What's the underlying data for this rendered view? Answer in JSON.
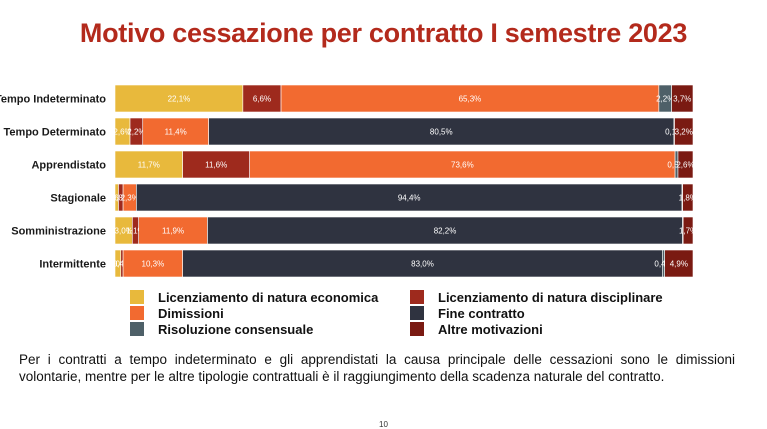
{
  "title": "Motivo cessazione per contratto I semestre 2023",
  "note": "Per i contratti a tempo indeterminato e gli apprendistati la causa principale delle cessazioni sono le dimissioni volontarie, mentre per le altre tipologie contrattuali è il raggiungimento della scadenza naturale del contratto.",
  "page_number": "10",
  "chart_data": {
    "type": "bar",
    "orientation": "horizontal",
    "stacked": true,
    "percent_stacked": true,
    "categories": [
      "Tempo Indeterminato",
      "Tempo Determinato",
      "Apprendistato",
      "Stagionale",
      "Somministrazione",
      "Intermittente"
    ],
    "series": [
      {
        "name": "Licenziamento di natura economica",
        "color": "#e8b93c",
        "values": [
          22.1,
          2.6,
          11.7,
          0.6,
          3.0,
          1.0
        ]
      },
      {
        "name": "Licenziamento di natura disciplinare",
        "color": "#9e2a1d",
        "values": [
          6.6,
          2.2,
          11.6,
          0.8,
          1.1,
          0.4
        ]
      },
      {
        "name": "Dimissioni",
        "color": "#f26a30",
        "values": [
          65.3,
          11.4,
          73.6,
          2.3,
          11.9,
          10.3
        ]
      },
      {
        "name": "Fine contratto",
        "color": "#2f3340",
        "values": [
          0.0,
          80.5,
          0.0,
          94.4,
          82.2,
          83.0
        ]
      },
      {
        "name": "Risoluzione consensuale",
        "color": "#4e6068",
        "values": [
          2.2,
          0.1,
          0.5,
          0.1,
          0.1,
          0.4
        ]
      },
      {
        "name": "Altre motivazioni",
        "color": "#7a1a12",
        "values": [
          3.7,
          3.2,
          2.6,
          1.8,
          1.7,
          4.9
        ]
      }
    ],
    "labels": [
      [
        "22,1%",
        "6,6%",
        "65,3%",
        "",
        "2,2%",
        "3,7%"
      ],
      [
        "2,6%",
        "2,2%",
        "11,4%",
        "80,5%",
        "0,1%",
        "3,2%"
      ],
      [
        "11,7%",
        "11,6%",
        "73,6%",
        "",
        "0,5%",
        "2,6%"
      ],
      [
        "0,6%",
        "0,8%",
        "2,3%",
        "94,4%",
        "",
        "1,8%"
      ],
      [
        "3,0%",
        "1,1%",
        "11,9%",
        "82,2%",
        "",
        "1,7%"
      ],
      [
        "1,0%",
        "0,4%",
        "10,3%",
        "83,0%",
        "0,4%",
        "4,9%"
      ]
    ],
    "legend_order": [
      "Licenziamento di natura economica",
      "Licenziamento di natura disciplinare",
      "Dimissioni",
      "Fine contratto",
      "Risoluzione consensuale",
      "Altre motivazioni"
    ],
    "legend_position": "bottom",
    "xlim": [
      0,
      100
    ],
    "grid": false
  }
}
